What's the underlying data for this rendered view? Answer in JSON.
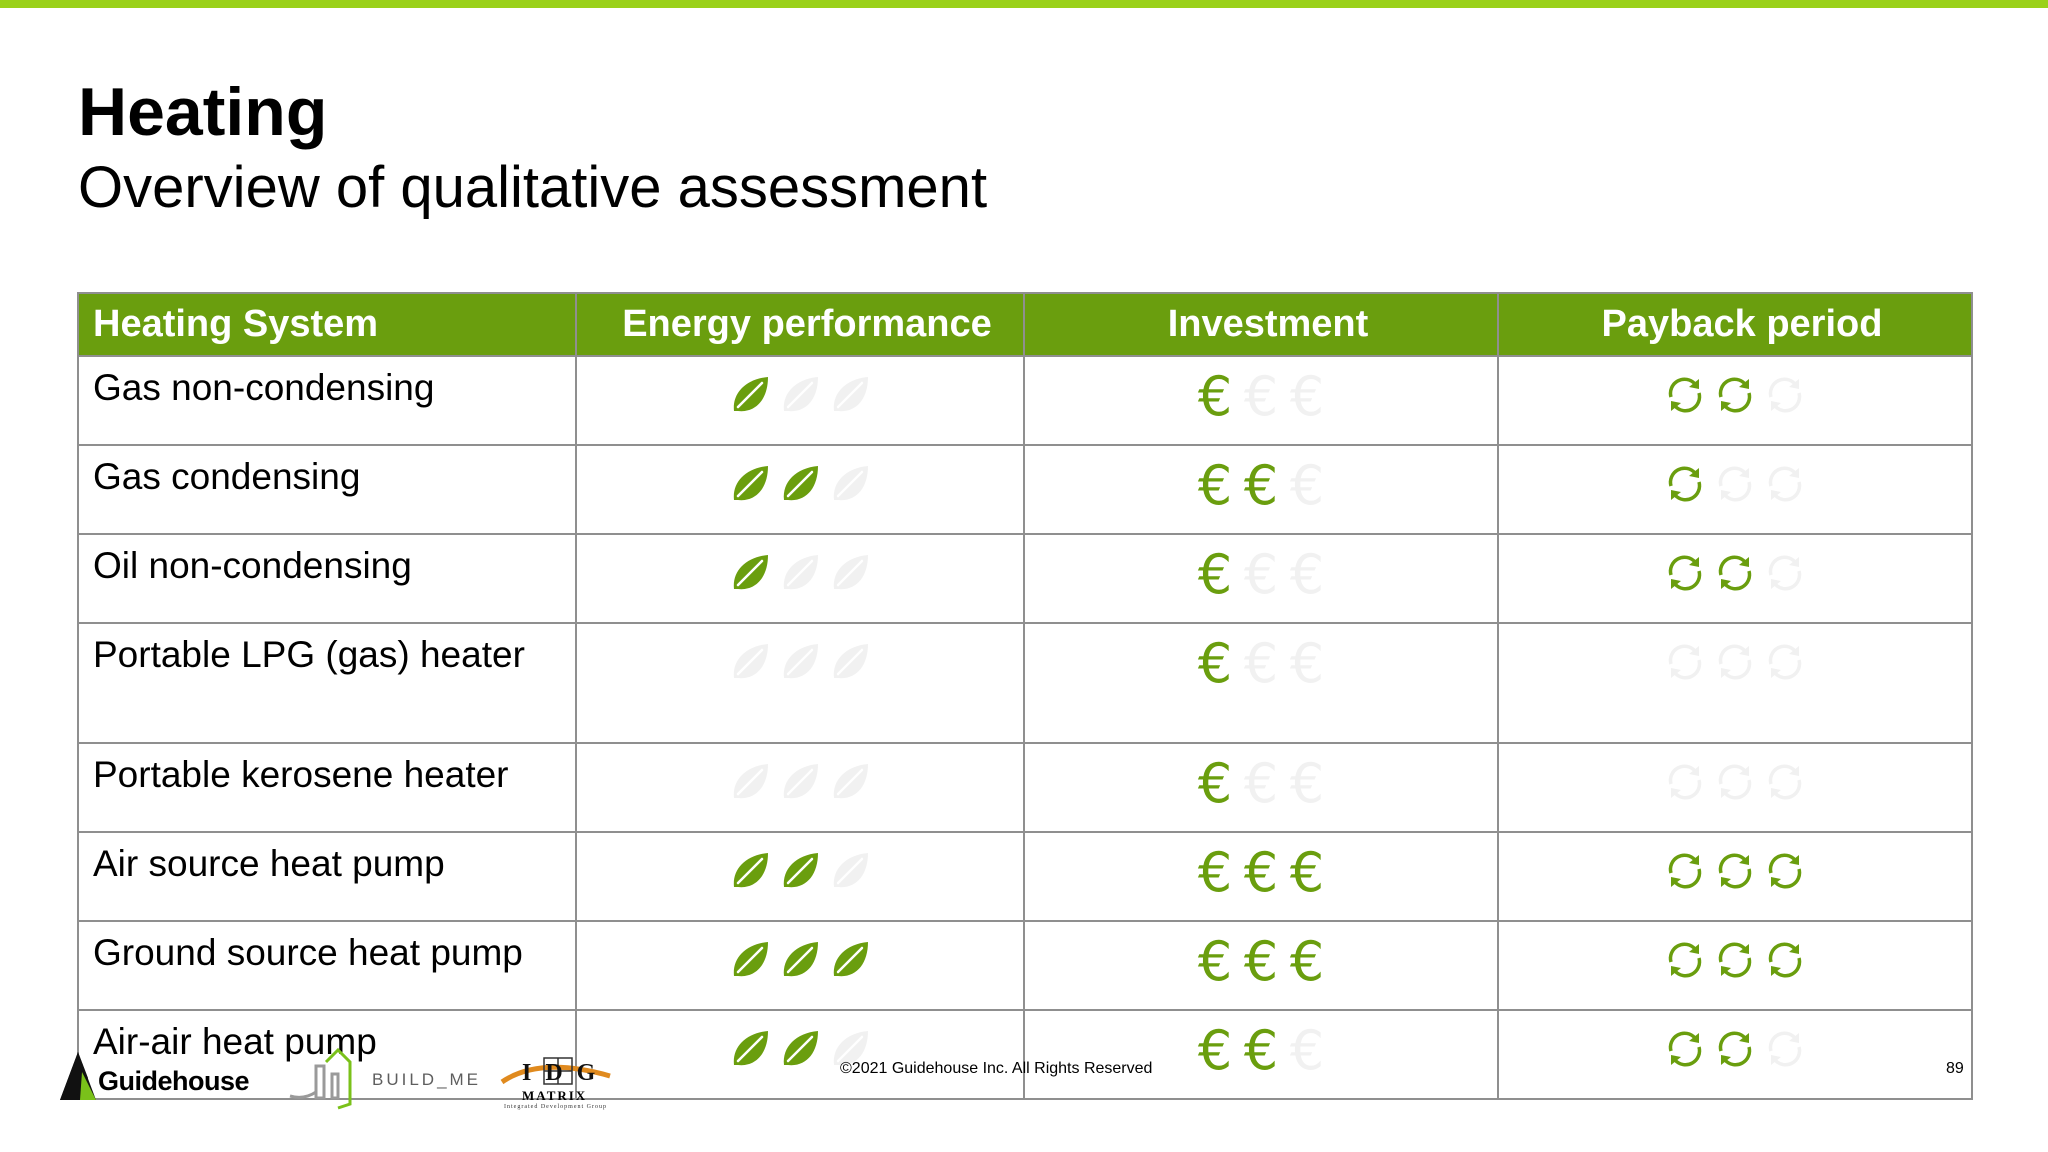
{
  "slide": {
    "title": "Heating",
    "subtitle": "Overview of qualitative assessment",
    "accent_color": "#9ad11a",
    "header_color": "#6a9e0e",
    "icon_active_color": "#6a9e0e",
    "icon_inactive_color": "#f1f1f1"
  },
  "table": {
    "headers": [
      "Heating System",
      "Energy performance",
      "Investment",
      "Payback period"
    ],
    "rows": [
      {
        "system": "Gas non-condensing",
        "energy": 1,
        "investment": 1,
        "payback": 2
      },
      {
        "system": "Gas condensing",
        "energy": 2,
        "investment": 2,
        "payback": 1
      },
      {
        "system": "Oil non-condensing",
        "energy": 1,
        "investment": 1,
        "payback": 2
      },
      {
        "system": "Portable LPG (gas) heater",
        "energy": 0,
        "investment": 1,
        "payback": 0
      },
      {
        "system": "Portable kerosene heater",
        "energy": 0,
        "investment": 1,
        "payback": 0
      },
      {
        "system": "Air source heat pump",
        "energy": 2,
        "investment": 3,
        "payback": 3
      },
      {
        "system": "Ground source heat pump",
        "energy": 3,
        "investment": 3,
        "payback": 3
      },
      {
        "system": "Air-air heat pump",
        "energy": 2,
        "investment": 2,
        "payback": 2
      }
    ],
    "icons": {
      "energy": "leaf-icon",
      "investment": "euro-icon",
      "investment_glyph": "€",
      "payback": "recycle-arrows-icon"
    },
    "max_rating": 3
  },
  "footer": {
    "logo_guidehouse": "Guidehouse",
    "logo_buildme": "BUILD_ME",
    "logo_idg_letters": "IDG",
    "logo_idg_sub": "MATRIX",
    "logo_idg_tagline": "Integrated Development Group",
    "copyright": "©2021 Guidehouse Inc. All Rights Reserved",
    "page_number": "89"
  }
}
